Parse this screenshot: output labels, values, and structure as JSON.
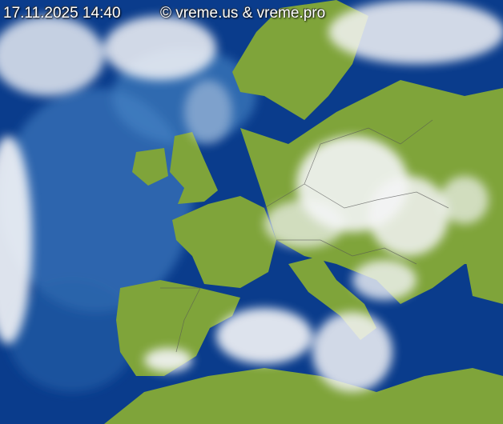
{
  "overlay": {
    "timestamp": "17.11.2025 14:40",
    "copyright": "© vreme.us & vreme.pro"
  },
  "colors": {
    "ocean": "#0a3c8c",
    "shallow_ocean": "#3d7fc0",
    "land": "#7fa43a",
    "cloud": "#f2f4f6"
  }
}
